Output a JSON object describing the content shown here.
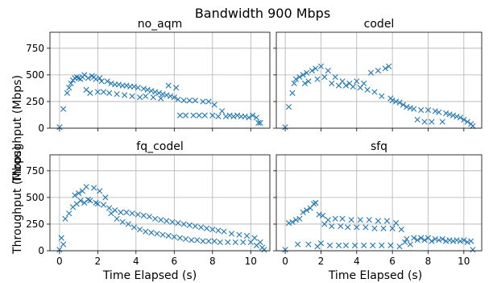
{
  "chart_data": {
    "title": "Bandwidth 900 Mbps",
    "type": "scatter",
    "marker": "x",
    "series_color": "#1f77b4",
    "xlabel": "Time Elapsed (s)",
    "ylabel": "Throughput (Mbps)",
    "xlim": [
      -0.5,
      11.0
    ],
    "ylim": [
      0,
      900
    ],
    "xticks": [
      "0",
      "2",
      "4",
      "6",
      "8",
      "10"
    ],
    "yticks": [
      "0",
      "250",
      "500",
      "750"
    ],
    "grid": true,
    "panels": [
      {
        "title": "no_aqm",
        "points": [
          [
            0,
            10
          ],
          [
            0.2,
            180
          ],
          [
            0.4,
            330
          ],
          [
            0.5,
            380
          ],
          [
            0.6,
            420
          ],
          [
            0.7,
            450
          ],
          [
            0.8,
            470
          ],
          [
            0.9,
            480
          ],
          [
            1.0,
            470
          ],
          [
            1.1,
            460
          ],
          [
            1.2,
            480
          ],
          [
            1.3,
            500
          ],
          [
            1.4,
            360
          ],
          [
            1.5,
            470
          ],
          [
            1.6,
            330
          ],
          [
            1.7,
            490
          ],
          [
            1.8,
            480
          ],
          [
            1.9,
            460
          ],
          [
            2.0,
            340
          ],
          [
            2.1,
            470
          ],
          [
            2.2,
            440
          ],
          [
            2.3,
            340
          ],
          [
            2.5,
            440
          ],
          [
            2.6,
            330
          ],
          [
            2.7,
            420
          ],
          [
            2.9,
            410
          ],
          [
            3.0,
            320
          ],
          [
            3.1,
            410
          ],
          [
            3.3,
            400
          ],
          [
            3.4,
            310
          ],
          [
            3.5,
            400
          ],
          [
            3.7,
            390
          ],
          [
            3.8,
            300
          ],
          [
            3.9,
            390
          ],
          [
            4.1,
            380
          ],
          [
            4.2,
            290
          ],
          [
            4.4,
            370
          ],
          [
            4.5,
            300
          ],
          [
            4.6,
            360
          ],
          [
            4.8,
            350
          ],
          [
            4.9,
            290
          ],
          [
            5.0,
            340
          ],
          [
            5.2,
            330
          ],
          [
            5.3,
            280
          ],
          [
            5.4,
            320
          ],
          [
            5.6,
            310
          ],
          [
            5.7,
            400
          ],
          [
            5.8,
            300
          ],
          [
            6.0,
            290
          ],
          [
            6.1,
            380
          ],
          [
            6.2,
            270
          ],
          [
            6.3,
            120
          ],
          [
            6.5,
            260
          ],
          [
            6.6,
            120
          ],
          [
            6.8,
            260
          ],
          [
            7.0,
            120
          ],
          [
            7.1,
            260
          ],
          [
            7.3,
            120
          ],
          [
            7.5,
            250
          ],
          [
            7.6,
            120
          ],
          [
            7.8,
            250
          ],
          [
            8.0,
            120
          ],
          [
            8.1,
            220
          ],
          [
            8.3,
            110
          ],
          [
            8.5,
            160
          ],
          [
            8.7,
            110
          ],
          [
            8.9,
            120
          ],
          [
            9.1,
            110
          ],
          [
            9.3,
            120
          ],
          [
            9.5,
            110
          ],
          [
            9.7,
            110
          ],
          [
            9.9,
            100
          ],
          [
            10.1,
            120
          ],
          [
            10.3,
            100
          ],
          [
            10.4,
            50
          ],
          [
            10.5,
            50
          ]
        ]
      },
      {
        "title": "codel",
        "points": [
          [
            0,
            10
          ],
          [
            0.2,
            200
          ],
          [
            0.4,
            330
          ],
          [
            0.5,
            420
          ],
          [
            0.6,
            460
          ],
          [
            0.8,
            480
          ],
          [
            1.0,
            500
          ],
          [
            1.1,
            420
          ],
          [
            1.2,
            520
          ],
          [
            1.3,
            440
          ],
          [
            1.5,
            540
          ],
          [
            1.7,
            560
          ],
          [
            1.8,
            460
          ],
          [
            2.0,
            580
          ],
          [
            2.2,
            480
          ],
          [
            2.4,
            540
          ],
          [
            2.6,
            420
          ],
          [
            2.8,
            480
          ],
          [
            3.0,
            400
          ],
          [
            3.2,
            440
          ],
          [
            3.4,
            400
          ],
          [
            3.6,
            420
          ],
          [
            3.8,
            390
          ],
          [
            4.0,
            440
          ],
          [
            4.2,
            380
          ],
          [
            4.4,
            420
          ],
          [
            4.6,
            360
          ],
          [
            4.8,
            520
          ],
          [
            5.0,
            340
          ],
          [
            5.2,
            540
          ],
          [
            5.4,
            300
          ],
          [
            5.6,
            560
          ],
          [
            5.8,
            580
          ],
          [
            5.9,
            280
          ],
          [
            6.0,
            260
          ],
          [
            6.2,
            250
          ],
          [
            6.4,
            240
          ],
          [
            6.6,
            220
          ],
          [
            6.8,
            200
          ],
          [
            7.0,
            190
          ],
          [
            7.2,
            180
          ],
          [
            7.4,
            80
          ],
          [
            7.6,
            170
          ],
          [
            7.8,
            60
          ],
          [
            8.0,
            170
          ],
          [
            8.2,
            60
          ],
          [
            8.4,
            160
          ],
          [
            8.6,
            150
          ],
          [
            8.8,
            60
          ],
          [
            9.0,
            140
          ],
          [
            9.2,
            130
          ],
          [
            9.4,
            120
          ],
          [
            9.6,
            110
          ],
          [
            9.8,
            100
          ],
          [
            10.0,
            80
          ],
          [
            10.2,
            60
          ],
          [
            10.4,
            40
          ],
          [
            10.5,
            20
          ]
        ]
      },
      {
        "title": "fq_codel",
        "points": [
          [
            0,
            10
          ],
          [
            0.1,
            120
          ],
          [
            0.2,
            60
          ],
          [
            0.3,
            300
          ],
          [
            0.5,
            350
          ],
          [
            0.7,
            410
          ],
          [
            0.8,
            520
          ],
          [
            0.9,
            440
          ],
          [
            1.0,
            540
          ],
          [
            1.1,
            470
          ],
          [
            1.2,
            560
          ],
          [
            1.3,
            450
          ],
          [
            1.4,
            600
          ],
          [
            1.5,
            480
          ],
          [
            1.6,
            470
          ],
          [
            1.8,
            590
          ],
          [
            1.9,
            450
          ],
          [
            2.0,
            440
          ],
          [
            2.1,
            560
          ],
          [
            2.3,
            430
          ],
          [
            2.4,
            500
          ],
          [
            2.6,
            400
          ],
          [
            2.7,
            350
          ],
          [
            2.9,
            380
          ],
          [
            3.0,
            300
          ],
          [
            3.2,
            360
          ],
          [
            3.3,
            270
          ],
          [
            3.5,
            360
          ],
          [
            3.6,
            250
          ],
          [
            3.8,
            350
          ],
          [
            3.9,
            220
          ],
          [
            4.1,
            340
          ],
          [
            4.2,
            200
          ],
          [
            4.4,
            330
          ],
          [
            4.5,
            180
          ],
          [
            4.7,
            320
          ],
          [
            4.8,
            170
          ],
          [
            5.0,
            300
          ],
          [
            5.1,
            160
          ],
          [
            5.3,
            290
          ],
          [
            5.4,
            150
          ],
          [
            5.6,
            280
          ],
          [
            5.7,
            140
          ],
          [
            5.9,
            270
          ],
          [
            6.0,
            130
          ],
          [
            6.2,
            260
          ],
          [
            6.3,
            120
          ],
          [
            6.5,
            250
          ],
          [
            6.6,
            110
          ],
          [
            6.8,
            240
          ],
          [
            6.9,
            100
          ],
          [
            7.1,
            230
          ],
          [
            7.2,
            100
          ],
          [
            7.4,
            220
          ],
          [
            7.5,
            90
          ],
          [
            7.7,
            210
          ],
          [
            7.8,
            90
          ],
          [
            8.0,
            200
          ],
          [
            8.1,
            90
          ],
          [
            8.3,
            190
          ],
          [
            8.4,
            80
          ],
          [
            8.6,
            180
          ],
          [
            8.8,
            80
          ],
          [
            9.0,
            160
          ],
          [
            9.2,
            80
          ],
          [
            9.4,
            150
          ],
          [
            9.6,
            80
          ],
          [
            9.8,
            140
          ],
          [
            10.0,
            80
          ],
          [
            10.2,
            120
          ],
          [
            10.3,
            50
          ],
          [
            10.5,
            80
          ],
          [
            10.6,
            30
          ],
          [
            10.7,
            10
          ]
        ]
      },
      {
        "title": "sfq",
        "points": [
          [
            0,
            10
          ],
          [
            0.2,
            260
          ],
          [
            0.4,
            270
          ],
          [
            0.6,
            290
          ],
          [
            0.7,
            60
          ],
          [
            0.8,
            300
          ],
          [
            1.0,
            360
          ],
          [
            1.2,
            380
          ],
          [
            1.3,
            60
          ],
          [
            1.4,
            400
          ],
          [
            1.6,
            440
          ],
          [
            1.7,
            450
          ],
          [
            1.8,
            40
          ],
          [
            1.9,
            340
          ],
          [
            2.0,
            70
          ],
          [
            2.1,
            330
          ],
          [
            2.2,
            250
          ],
          [
            2.4,
            290
          ],
          [
            2.5,
            50
          ],
          [
            2.6,
            230
          ],
          [
            2.8,
            300
          ],
          [
            3.0,
            50
          ],
          [
            3.1,
            230
          ],
          [
            3.2,
            300
          ],
          [
            3.4,
            50
          ],
          [
            3.5,
            220
          ],
          [
            3.7,
            290
          ],
          [
            3.9,
            50
          ],
          [
            4.0,
            220
          ],
          [
            4.2,
            290
          ],
          [
            4.4,
            50
          ],
          [
            4.5,
            220
          ],
          [
            4.7,
            290
          ],
          [
            4.9,
            50
          ],
          [
            5.0,
            210
          ],
          [
            5.2,
            280
          ],
          [
            5.4,
            50
          ],
          [
            5.5,
            210
          ],
          [
            5.7,
            280
          ],
          [
            5.9,
            50
          ],
          [
            6.0,
            210
          ],
          [
            6.2,
            260
          ],
          [
            6.4,
            40
          ],
          [
            6.5,
            200
          ],
          [
            6.7,
            80
          ],
          [
            6.8,
            110
          ],
          [
            7.0,
            60
          ],
          [
            7.2,
            120
          ],
          [
            7.4,
            100
          ],
          [
            7.6,
            120
          ],
          [
            7.8,
            100
          ],
          [
            8.0,
            120
          ],
          [
            8.2,
            90
          ],
          [
            8.4,
            110
          ],
          [
            8.6,
            100
          ],
          [
            8.8,
            110
          ],
          [
            9.0,
            90
          ],
          [
            9.2,
            100
          ],
          [
            9.4,
            90
          ],
          [
            9.6,
            100
          ],
          [
            9.8,
            90
          ],
          [
            10.0,
            100
          ],
          [
            10.2,
            80
          ],
          [
            10.4,
            90
          ],
          [
            10.5,
            10
          ]
        ]
      }
    ]
  }
}
